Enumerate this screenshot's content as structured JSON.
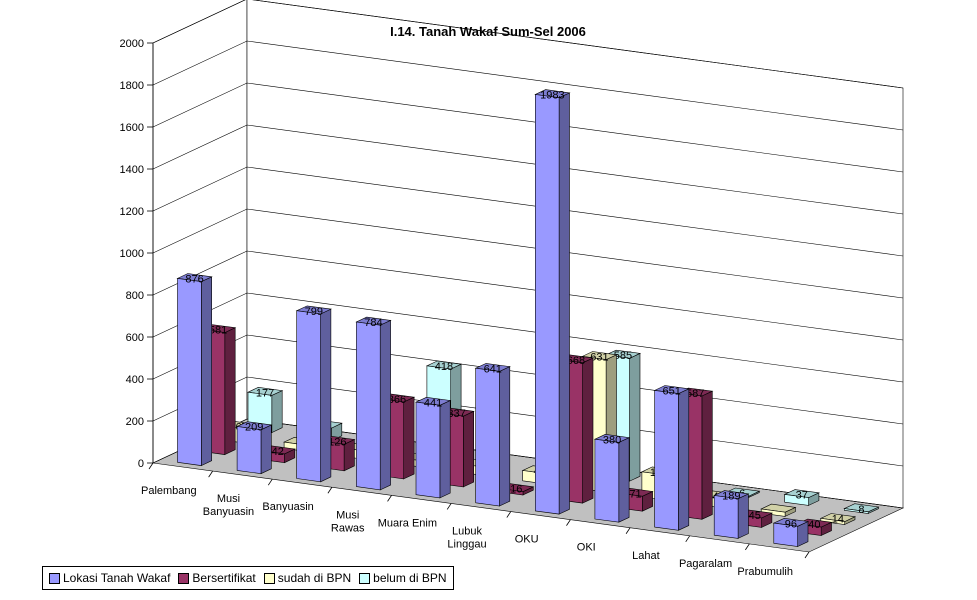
{
  "chart_data": {
    "type": "bar",
    "title": "I.14. Tanah Wakaf Sum-Sel 2006",
    "categories": [
      "Palembang",
      "Musi Banyuasin",
      "Banyuasin",
      "Musi Rawas",
      "Muara Enim",
      "Lubuk Linggau",
      "OKU",
      "OKI",
      "Lahat",
      "Pagaralam",
      "Prabumulih"
    ],
    "category_lines": [
      [
        "Palembang"
      ],
      [
        "Musi",
        "Banyuasin"
      ],
      [
        "Banyuasin"
      ],
      [
        "Musi",
        "Rawas"
      ],
      [
        "Muara Enim"
      ],
      [
        "Lubuk",
        "Linggau"
      ],
      [
        "OKU"
      ],
      [
        "OKI"
      ],
      [
        "Lahat"
      ],
      [
        "Pagaralam"
      ],
      [
        "Prabumulih"
      ]
    ],
    "series": [
      {
        "name": "Lokasi Tanah Wakaf",
        "color": "#9999ff",
        "values": [
          876,
          209,
          799,
          784,
          441,
          641,
          1983,
          380,
          651,
          189,
          96
        ],
        "labels": [
          "876",
          "209",
          "799",
          "784",
          "441",
          "641",
          "1983",
          "380",
          "651",
          "189",
          "96"
        ]
      },
      {
        "name": "Bersertifikat",
        "color": "#993366",
        "values": [
          581,
          42,
          126,
          366,
          337,
          16,
          668,
          71,
          587,
          45,
          40
        ],
        "labels": [
          "581",
          "42",
          "126",
          "366",
          "337",
          "16",
          "668",
          "71",
          "587",
          "45",
          "40"
        ]
      },
      {
        "name": "sudah di BPN",
        "color": "#ffffcc",
        "values": [
          67,
          30,
          40,
          30,
          40,
          49,
          631,
          120,
          45,
          20,
          14
        ],
        "labels": [
          "67",
          "",
          "",
          "",
          "",
          "49",
          "631",
          "120",
          "45",
          "",
          "14"
        ]
      },
      {
        "name": "belum di BPN",
        "color": "#ccffff",
        "values": [
          177,
          60,
          50,
          418,
          0,
          0,
          585,
          0,
          6,
          37,
          8
        ],
        "labels": [
          "177",
          "",
          "",
          "418",
          "",
          "",
          "585",
          "",
          "6",
          "37",
          "8"
        ]
      }
    ],
    "ylim": [
      0,
      2000
    ],
    "yticks": [
      0,
      200,
      400,
      600,
      800,
      1000,
      1200,
      1400,
      1600,
      1800,
      2000
    ],
    "grid": true,
    "legend_position": "bottom-left"
  }
}
